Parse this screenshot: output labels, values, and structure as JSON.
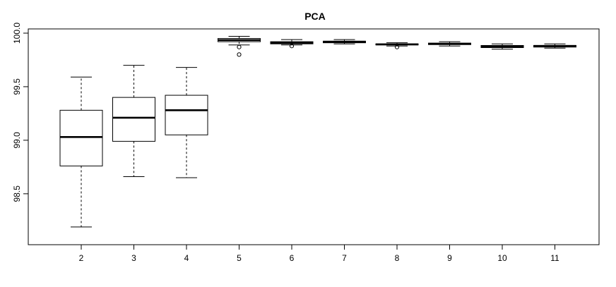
{
  "chart_data": {
    "type": "boxplot",
    "title": "PCA",
    "xlabel": "",
    "ylabel": "",
    "ylim": [
      98.08,
      100.04
    ],
    "y_ticks": [
      98.5,
      99.0,
      99.5,
      100.0
    ],
    "y_tick_labels": [
      "98.5",
      "99.0",
      "99.5",
      "100.0"
    ],
    "grid": false,
    "categories": [
      "2",
      "3",
      "4",
      "5",
      "6",
      "7",
      "8",
      "9",
      "10",
      "11"
    ],
    "boxes": [
      {
        "label": "2",
        "min": 98.19,
        "q1": 98.76,
        "median": 99.03,
        "q3": 99.28,
        "max": 99.59,
        "outliers": []
      },
      {
        "label": "3",
        "min": 98.66,
        "q1": 98.99,
        "median": 99.21,
        "q3": 99.4,
        "max": 99.7,
        "outliers": []
      },
      {
        "label": "4",
        "min": 98.65,
        "q1": 99.05,
        "median": 99.28,
        "q3": 99.42,
        "max": 99.68,
        "outliers": []
      },
      {
        "label": "5",
        "min": 99.89,
        "q1": 99.92,
        "median": 99.935,
        "q3": 99.95,
        "max": 99.97,
        "outliers": [
          99.87,
          99.8
        ]
      },
      {
        "label": "6",
        "min": 99.89,
        "q1": 99.9,
        "median": 99.91,
        "q3": 99.92,
        "max": 99.94,
        "outliers": [
          99.88
        ]
      },
      {
        "label": "7",
        "min": 99.9,
        "q1": 99.91,
        "median": 99.92,
        "q3": 99.925,
        "max": 99.94,
        "outliers": []
      },
      {
        "label": "8",
        "min": 99.88,
        "q1": 99.89,
        "median": 99.895,
        "q3": 99.9,
        "max": 99.91,
        "outliers": [
          99.87
        ]
      },
      {
        "label": "9",
        "min": 99.88,
        "q1": 99.893,
        "median": 99.9,
        "q3": 99.907,
        "max": 99.92,
        "outliers": []
      },
      {
        "label": "10",
        "min": 99.85,
        "q1": 99.865,
        "median": 99.875,
        "q3": 99.885,
        "max": 99.9,
        "outliers": []
      },
      {
        "label": "11",
        "min": 99.86,
        "q1": 99.87,
        "median": 99.88,
        "q3": 99.885,
        "max": 99.9,
        "outliers": []
      }
    ]
  }
}
